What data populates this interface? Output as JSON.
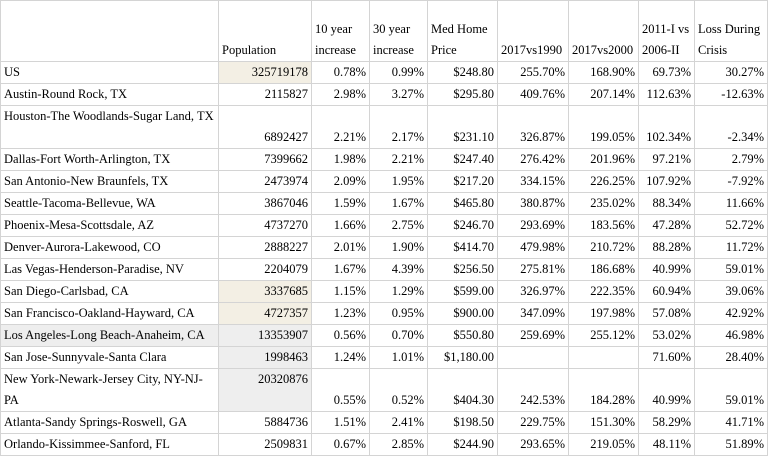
{
  "headers": {
    "name": "",
    "population": "Population",
    "inc10": "10 year increase",
    "inc30": "30 year increase",
    "price": "Med Home Price",
    "vs1990": "2017vs1990",
    "vs2000": "2017vs2000",
    "vs2006": "2011-I vs 2006-II",
    "loss": "Loss During Crisis"
  },
  "rows": [
    {
      "name": "US",
      "population": "325719178",
      "inc10": "0.78%",
      "inc30": "0.99%",
      "price": "$248.80",
      "vs1990": "255.70%",
      "vs2000": "168.90%",
      "vs2006": "69.73%",
      "loss": "30.27%"
    },
    {
      "name": "Austin-Round Rock, TX",
      "population": "2115827",
      "inc10": "2.98%",
      "inc30": "3.27%",
      "price": "$295.80",
      "vs1990": "409.76%",
      "vs2000": "207.14%",
      "vs2006": "112.63%",
      "loss": "-12.63%"
    },
    {
      "name": "Houston-The Woodlands-Sugar Land, TX",
      "population": "6892427",
      "inc10": "2.21%",
      "inc30": "2.17%",
      "price": "$231.10",
      "vs1990": "326.87%",
      "vs2000": "199.05%",
      "vs2006": "102.34%",
      "loss": "-2.34%"
    },
    {
      "name": "Dallas-Fort Worth-Arlington, TX",
      "population": "7399662",
      "inc10": "1.98%",
      "inc30": "2.21%",
      "price": "$247.40",
      "vs1990": "276.42%",
      "vs2000": "201.96%",
      "vs2006": "97.21%",
      "loss": "2.79%"
    },
    {
      "name": "San Antonio-New Braunfels, TX",
      "population": "2473974",
      "inc10": "2.09%",
      "inc30": "1.95%",
      "price": "$217.20",
      "vs1990": "334.15%",
      "vs2000": "226.25%",
      "vs2006": "107.92%",
      "loss": "-7.92%"
    },
    {
      "name": "Seattle-Tacoma-Bellevue, WA",
      "population": "3867046",
      "inc10": "1.59%",
      "inc30": "1.67%",
      "price": "$465.80",
      "vs1990": "380.87%",
      "vs2000": "235.02%",
      "vs2006": "88.34%",
      "loss": "11.66%"
    },
    {
      "name": "Phoenix-Mesa-Scottsdale, AZ",
      "population": "4737270",
      "inc10": "1.66%",
      "inc30": "2.75%",
      "price": "$246.70",
      "vs1990": "293.69%",
      "vs2000": "183.56%",
      "vs2006": "47.28%",
      "loss": "52.72%"
    },
    {
      "name": "Denver-Aurora-Lakewood, CO",
      "population": "2888227",
      "inc10": "2.01%",
      "inc30": "1.90%",
      "price": "$414.70",
      "vs1990": "479.98%",
      "vs2000": "210.72%",
      "vs2006": "88.28%",
      "loss": "11.72%"
    },
    {
      "name": "Las Vegas-Henderson-Paradise, NV",
      "population": "2204079",
      "inc10": "1.67%",
      "inc30": "4.39%",
      "price": "$256.50",
      "vs1990": "275.81%",
      "vs2000": "186.68%",
      "vs2006": "40.99%",
      "loss": "59.01%"
    },
    {
      "name": "San Diego-Carlsbad, CA",
      "population": "3337685",
      "inc10": "1.15%",
      "inc30": "1.29%",
      "price": "$599.00",
      "vs1990": "326.97%",
      "vs2000": "222.35%",
      "vs2006": "60.94%",
      "loss": "39.06%"
    },
    {
      "name": "San Francisco-Oakland-Hayward, CA",
      "population": "4727357",
      "inc10": "1.23%",
      "inc30": "0.95%",
      "price": "$900.00",
      "vs1990": "347.09%",
      "vs2000": "197.98%",
      "vs2006": "57.08%",
      "loss": "42.92%"
    },
    {
      "name": "Los Angeles-Long Beach-Anaheim, CA",
      "population": "13353907",
      "inc10": "0.56%",
      "inc30": "0.70%",
      "price": "$550.80",
      "vs1990": "259.69%",
      "vs2000": "255.12%",
      "vs2006": "53.02%",
      "loss": "46.98%"
    },
    {
      "name": "San Jose-Sunnyvale-Santa Clara",
      "population": "1998463",
      "inc10": "1.24%",
      "inc30": "1.01%",
      "price": "$1,180.00",
      "vs1990": "",
      "vs2000": "",
      "vs2006": "71.60%",
      "loss": "28.40%"
    },
    {
      "name": "New York-Newark-Jersey City, NY-NJ-PA",
      "population": "20320876",
      "inc10": "0.55%",
      "inc30": "0.52%",
      "price": "$404.30",
      "vs1990": "242.53%",
      "vs2000": "184.28%",
      "vs2006": "40.99%",
      "loss": "59.01%"
    },
    {
      "name": "Atlanta-Sandy Springs-Roswell, GA",
      "population": "5884736",
      "inc10": "1.51%",
      "inc30": "2.41%",
      "price": "$198.50",
      "vs1990": "229.75%",
      "vs2000": "151.30%",
      "vs2006": "58.29%",
      "loss": "41.71%"
    },
    {
      "name": "Orlando-Kissimmee-Sanford, FL",
      "population": "2509831",
      "inc10": "0.67%",
      "inc30": "2.85%",
      "price": "$244.90",
      "vs1990": "293.65%",
      "vs2000": "219.05%",
      "vs2006": "48.11%",
      "loss": "51.89%"
    }
  ]
}
